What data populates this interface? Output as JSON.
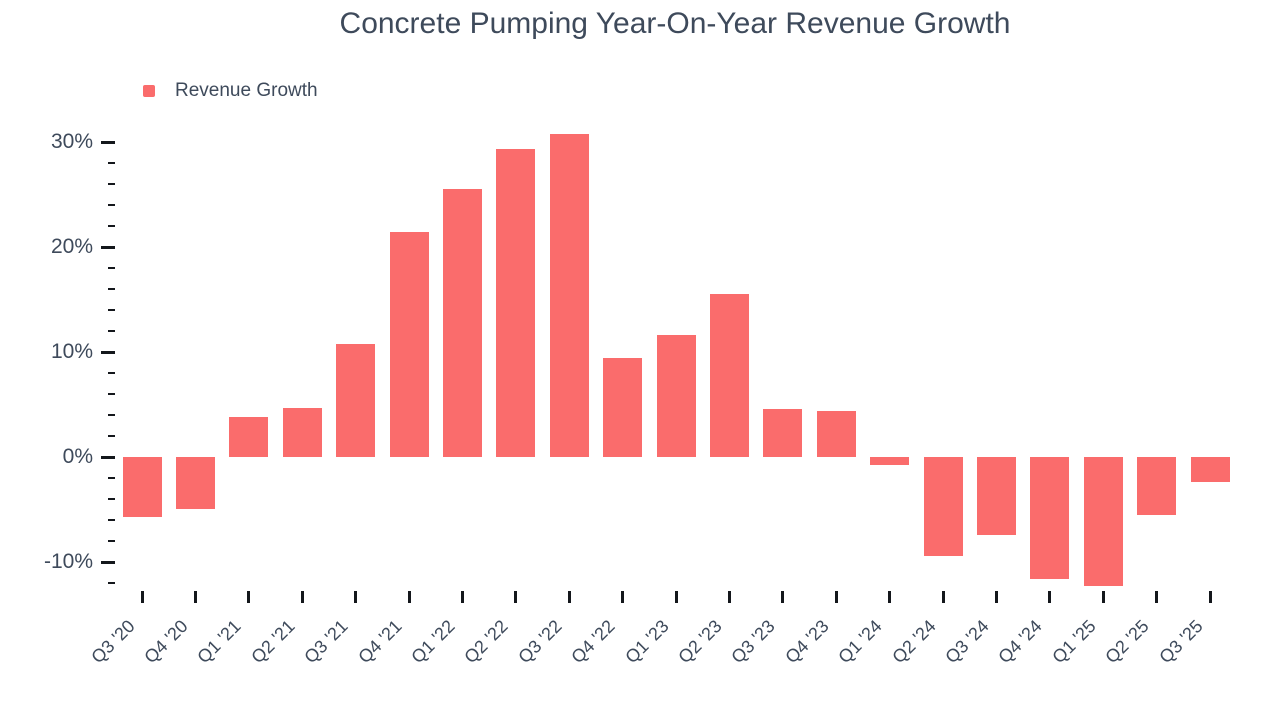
{
  "page": {
    "title": "Concrete Pumping Year-On-Year Revenue Growth"
  },
  "legend": {
    "label": "Revenue Growth"
  },
  "colors": {
    "bar": "#FA6C6C",
    "text": "#3E4A5B",
    "tick": "#14171C",
    "background": "#FFFFFF"
  },
  "chart_data": {
    "type": "bar",
    "title": "Concrete Pumping Year-On-Year Revenue Growth",
    "xlabel": "",
    "ylabel": "",
    "categories": [
      "Q3 '20",
      "Q4 '20",
      "Q1 '21",
      "Q2 '21",
      "Q3 '21",
      "Q4 '21",
      "Q1 '22",
      "Q2 '22",
      "Q3 '22",
      "Q4 '22",
      "Q1 '23",
      "Q2 '23",
      "Q3 '23",
      "Q4 '23",
      "Q1 '24",
      "Q2 '24",
      "Q3 '24",
      "Q4 '24",
      "Q1 '25",
      "Q2 '25",
      "Q3 '25"
    ],
    "series": [
      {
        "name": "Revenue Growth",
        "values": [
          -5.7,
          -4.9,
          3.8,
          4.7,
          10.8,
          21.4,
          25.5,
          29.3,
          30.8,
          9.4,
          11.6,
          15.5,
          4.6,
          4.4,
          -0.8,
          -9.4,
          -7.4,
          -11.6,
          -12.3,
          -5.5,
          -2.4
        ]
      }
    ],
    "unit": "percent",
    "ylim": [
      -14,
      33
    ],
    "y_major_ticks": [
      30,
      20,
      10,
      0,
      -10
    ],
    "y_tick_labels": [
      "30%",
      "20%",
      "10%",
      "0%",
      "-10%"
    ],
    "y_minor_tick_step": 2,
    "y_minor_tick_range": [
      -12,
      28
    ],
    "grid": false,
    "legend_position": "top-left"
  }
}
